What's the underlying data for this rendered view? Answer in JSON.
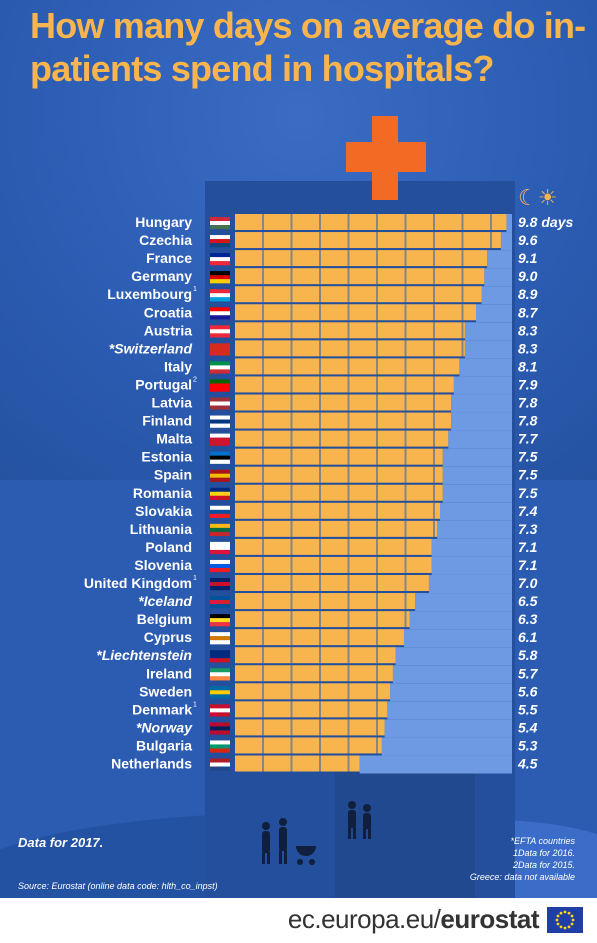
{
  "title": "How many days on average do in-patients spend in hospitals?",
  "year_note": "Data for 2017.",
  "source": "Source: Eurostat (online data code: hlth_co_inpst)",
  "notes": [
    "*EFTA countries",
    "1Data for 2016.",
    "2Data for 2015.",
    "Greece: data not available"
  ],
  "footer": {
    "url_prefix": "ec.europa.eu/",
    "brand": "eurostat"
  },
  "icons": {
    "cross": "hospital-cross-icon",
    "moon_sun": "moon-sun-icon",
    "eu_flag": "eu-flag-icon"
  },
  "colors": {
    "background": "#2b5cb2",
    "bar": "#f8b54e",
    "bar_remainder": "#6d9ae2",
    "title": "#f8b54e",
    "cross": "#f26a24"
  },
  "chart_data": {
    "type": "bar",
    "orientation": "horizontal",
    "unit": "days",
    "first_value_label": "9.8 days",
    "categories": [
      "Hungary",
      "Czechia",
      "France",
      "Germany",
      "Luxembourg",
      "Croatia",
      "Austria",
      "*Switzerland",
      "Italy",
      "Portugal",
      "Latvia",
      "Finland",
      "Malta",
      "Estonia",
      "Spain",
      "Romania",
      "Slovakia",
      "Lithuania",
      "Poland",
      "Slovenia",
      "United Kingdom",
      "*Iceland",
      "Belgium",
      "Cyprus",
      "*Liechtenstein",
      "Ireland",
      "Sweden",
      "Denmark",
      "*Norway",
      "Bulgaria",
      "Netherlands"
    ],
    "footnote_marks": [
      "",
      "",
      "",
      "",
      "1",
      "",
      "",
      "",
      "",
      "2",
      "",
      "",
      "",
      "",
      "",
      "",
      "",
      "",
      "",
      "",
      "1",
      "",
      "",
      "",
      "",
      "",
      "",
      "1",
      "",
      "",
      ""
    ],
    "values": [
      9.8,
      9.6,
      9.1,
      9.0,
      8.9,
      8.7,
      8.3,
      8.3,
      8.1,
      7.9,
      7.8,
      7.8,
      7.7,
      7.5,
      7.5,
      7.5,
      7.4,
      7.3,
      7.1,
      7.1,
      7.0,
      6.5,
      6.3,
      6.1,
      5.8,
      5.7,
      5.6,
      5.5,
      5.4,
      5.3,
      4.5
    ],
    "value_labels": [
      "9.8",
      "9.6",
      "9.1",
      "9.0",
      "8.9",
      "8.7",
      "8.3",
      "8.3",
      "8.1",
      "7.9",
      "7.8",
      "7.8",
      "7.7",
      "7.5",
      "7.5",
      "7.5",
      "7.4",
      "7.3",
      "7.1",
      "7.1",
      "7.0",
      "6.5",
      "6.3",
      "6.1",
      "5.8",
      "5.7",
      "5.6",
      "5.5",
      "5.4",
      "5.3",
      "4.5"
    ],
    "xlim": [
      0,
      10
    ],
    "flags": [
      [
        "#ce2939",
        "#ffffff",
        "#477050"
      ],
      [
        "#ffffff",
        "#d7141a",
        "#11457e"
      ],
      [
        "#002395",
        "#ffffff",
        "#ed2939"
      ],
      [
        "#000000",
        "#dd0000",
        "#ffce00"
      ],
      [
        "#ed2939",
        "#ffffff",
        "#00a1de"
      ],
      [
        "#ff0000",
        "#ffffff",
        "#171796"
      ],
      [
        "#ed2939",
        "#ffffff",
        "#ed2939"
      ],
      [
        "#d52b1e",
        "#d52b1e",
        "#d52b1e"
      ],
      [
        "#009246",
        "#ffffff",
        "#ce2b37"
      ],
      [
        "#006600",
        "#ff0000",
        "#ff0000"
      ],
      [
        "#9e3039",
        "#ffffff",
        "#9e3039"
      ],
      [
        "#ffffff",
        "#003580",
        "#ffffff"
      ],
      [
        "#ffffff",
        "#cf142b",
        "#cf142b"
      ],
      [
        "#0072ce",
        "#000000",
        "#ffffff"
      ],
      [
        "#aa151b",
        "#f1bf00",
        "#aa151b"
      ],
      [
        "#002b7f",
        "#fcd116",
        "#ce1126"
      ],
      [
        "#ffffff",
        "#0b4ea2",
        "#ee1c25"
      ],
      [
        "#fdb913",
        "#006a44",
        "#c1272d"
      ],
      [
        "#ffffff",
        "#ffffff",
        "#dc143c"
      ],
      [
        "#ffffff",
        "#005ce5",
        "#ed1c24"
      ],
      [
        "#012169",
        "#c8102e",
        "#012169"
      ],
      [
        "#02529c",
        "#dc1e35",
        "#02529c"
      ],
      [
        "#000000",
        "#fdda24",
        "#ef3340"
      ],
      [
        "#ffffff",
        "#d57800",
        "#ffffff"
      ],
      [
        "#002b7f",
        "#002b7f",
        "#ce1126"
      ],
      [
        "#169b62",
        "#ffffff",
        "#ff883e"
      ],
      [
        "#006aa7",
        "#fecc00",
        "#006aa7"
      ],
      [
        "#c8102e",
        "#ffffff",
        "#c8102e"
      ],
      [
        "#ba0c2f",
        "#00205b",
        "#ba0c2f"
      ],
      [
        "#ffffff",
        "#00966e",
        "#d62612"
      ],
      [
        "#ae1c28",
        "#ffffff",
        "#21468b"
      ]
    ]
  }
}
